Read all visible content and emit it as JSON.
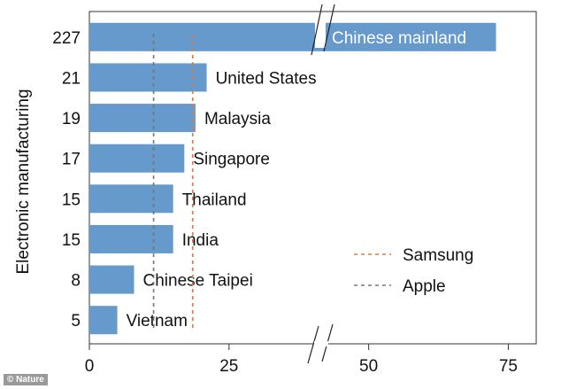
{
  "chart_data": {
    "type": "bar",
    "orientation": "horizontal",
    "ylabel": "Electronic manufacturing",
    "xlabel": "",
    "categories": [
      "Chinese mainland",
      "United States",
      "Malaysia",
      "Singapore",
      "Thailand",
      "India",
      "Chinese Taipei",
      "Vietnam"
    ],
    "values": [
      227,
      21,
      19,
      17,
      15,
      15,
      8,
      5
    ],
    "value_labels": [
      "227",
      "21",
      "19",
      "17",
      "15",
      "15",
      "8",
      "5"
    ],
    "xlim": [
      0,
      80
    ],
    "xticks": [
      0,
      25,
      50,
      75
    ],
    "xtick_labels": [
      "0",
      "25",
      "50",
      "75"
    ],
    "axis_break": true,
    "bar_color": "#6699cc",
    "reference_lines": [
      {
        "name": "Samsung",
        "value": 18.5,
        "color": "#e07b39",
        "style": "dashed"
      },
      {
        "name": "Apple",
        "value": 11.5,
        "color": "#777777",
        "style": "dashed"
      }
    ],
    "legend_placement": "bottom-right",
    "grid": false
  },
  "watermark": "© Nature"
}
